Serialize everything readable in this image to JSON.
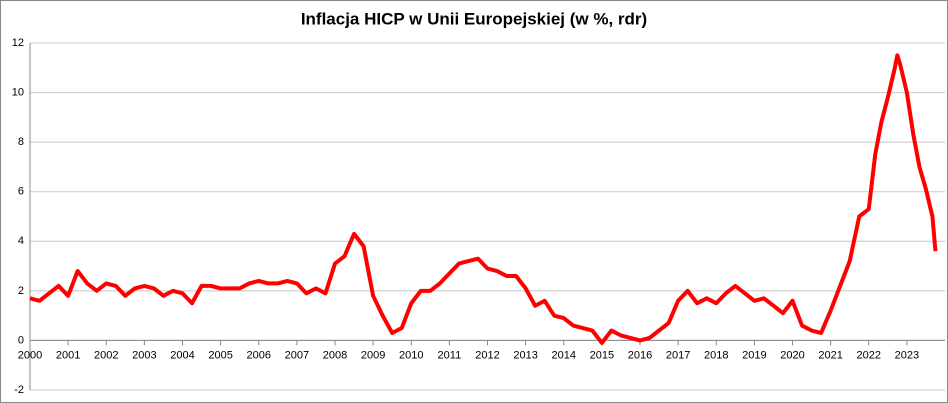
{
  "chart_data": {
    "type": "line",
    "title": "Inflacja HICP w Unii Europejskiej (w %, rdr)",
    "x": [
      2000,
      2000.25,
      2000.5,
      2000.75,
      2001,
      2001.25,
      2001.5,
      2001.75,
      2002,
      2002.25,
      2002.5,
      2002.75,
      2003,
      2003.25,
      2003.5,
      2003.75,
      2004,
      2004.25,
      2004.5,
      2004.75,
      2005,
      2005.25,
      2005.5,
      2005.75,
      2006,
      2006.25,
      2006.5,
      2006.75,
      2007,
      2007.25,
      2007.5,
      2007.75,
      2008,
      2008.25,
      2008.5,
      2008.75,
      2009,
      2009.25,
      2009.5,
      2009.75,
      2010,
      2010.25,
      2010.5,
      2010.75,
      2011,
      2011.25,
      2011.5,
      2011.75,
      2012,
      2012.25,
      2012.5,
      2012.75,
      2013,
      2013.25,
      2013.5,
      2013.75,
      2014,
      2014.25,
      2014.5,
      2014.75,
      2015,
      2015.25,
      2015.5,
      2015.75,
      2016,
      2016.25,
      2016.5,
      2016.75,
      2017,
      2017.25,
      2017.5,
      2017.75,
      2018,
      2018.25,
      2018.5,
      2018.75,
      2019,
      2019.25,
      2019.5,
      2019.75,
      2020,
      2020.25,
      2020.5,
      2020.75,
      2021,
      2021.25,
      2021.5,
      2021.75,
      2022,
      2022.17,
      2022.33,
      2022.5,
      2022.67,
      2022.75,
      2022.83,
      2023,
      2023.17,
      2023.33,
      2023.5,
      2023.67,
      2023.75
    ],
    "series": [
      {
        "name": "HICP",
        "color": "#ff0000",
        "values": [
          1.7,
          1.6,
          1.9,
          2.2,
          1.8,
          2.8,
          2.3,
          2.0,
          2.3,
          2.2,
          1.8,
          2.1,
          2.2,
          2.1,
          1.8,
          2.0,
          1.9,
          1.5,
          2.2,
          2.2,
          2.1,
          2.1,
          2.1,
          2.3,
          2.4,
          2.3,
          2.3,
          2.4,
          2.3,
          1.9,
          2.1,
          1.9,
          3.1,
          3.4,
          4.3,
          3.8,
          1.8,
          1.0,
          0.3,
          0.5,
          1.5,
          2.0,
          2.0,
          2.3,
          2.7,
          3.1,
          3.2,
          3.3,
          2.9,
          2.8,
          2.6,
          2.6,
          2.1,
          1.4,
          1.6,
          1.0,
          0.9,
          0.6,
          0.5,
          0.4,
          -0.1,
          0.4,
          0.2,
          0.1,
          0.0,
          0.1,
          0.4,
          0.7,
          1.6,
          2.0,
          1.5,
          1.7,
          1.5,
          1.9,
          2.2,
          1.9,
          1.6,
          1.7,
          1.4,
          1.1,
          1.6,
          0.6,
          0.4,
          0.3,
          1.2,
          2.2,
          3.2,
          5.0,
          5.3,
          7.5,
          8.8,
          9.8,
          10.9,
          11.5,
          11.1,
          10.0,
          8.3,
          7.0,
          6.1,
          5.0,
          3.6
        ]
      }
    ],
    "xlim": [
      2000,
      2024
    ],
    "xticks": [
      2000,
      2001,
      2002,
      2003,
      2004,
      2005,
      2006,
      2007,
      2008,
      2009,
      2010,
      2011,
      2012,
      2013,
      2014,
      2015,
      2016,
      2017,
      2018,
      2019,
      2020,
      2021,
      2022,
      2023
    ],
    "ylim": [
      -2,
      12
    ],
    "yticks": [
      -2,
      0,
      2,
      4,
      6,
      8,
      10,
      12
    ],
    "grid": true
  }
}
